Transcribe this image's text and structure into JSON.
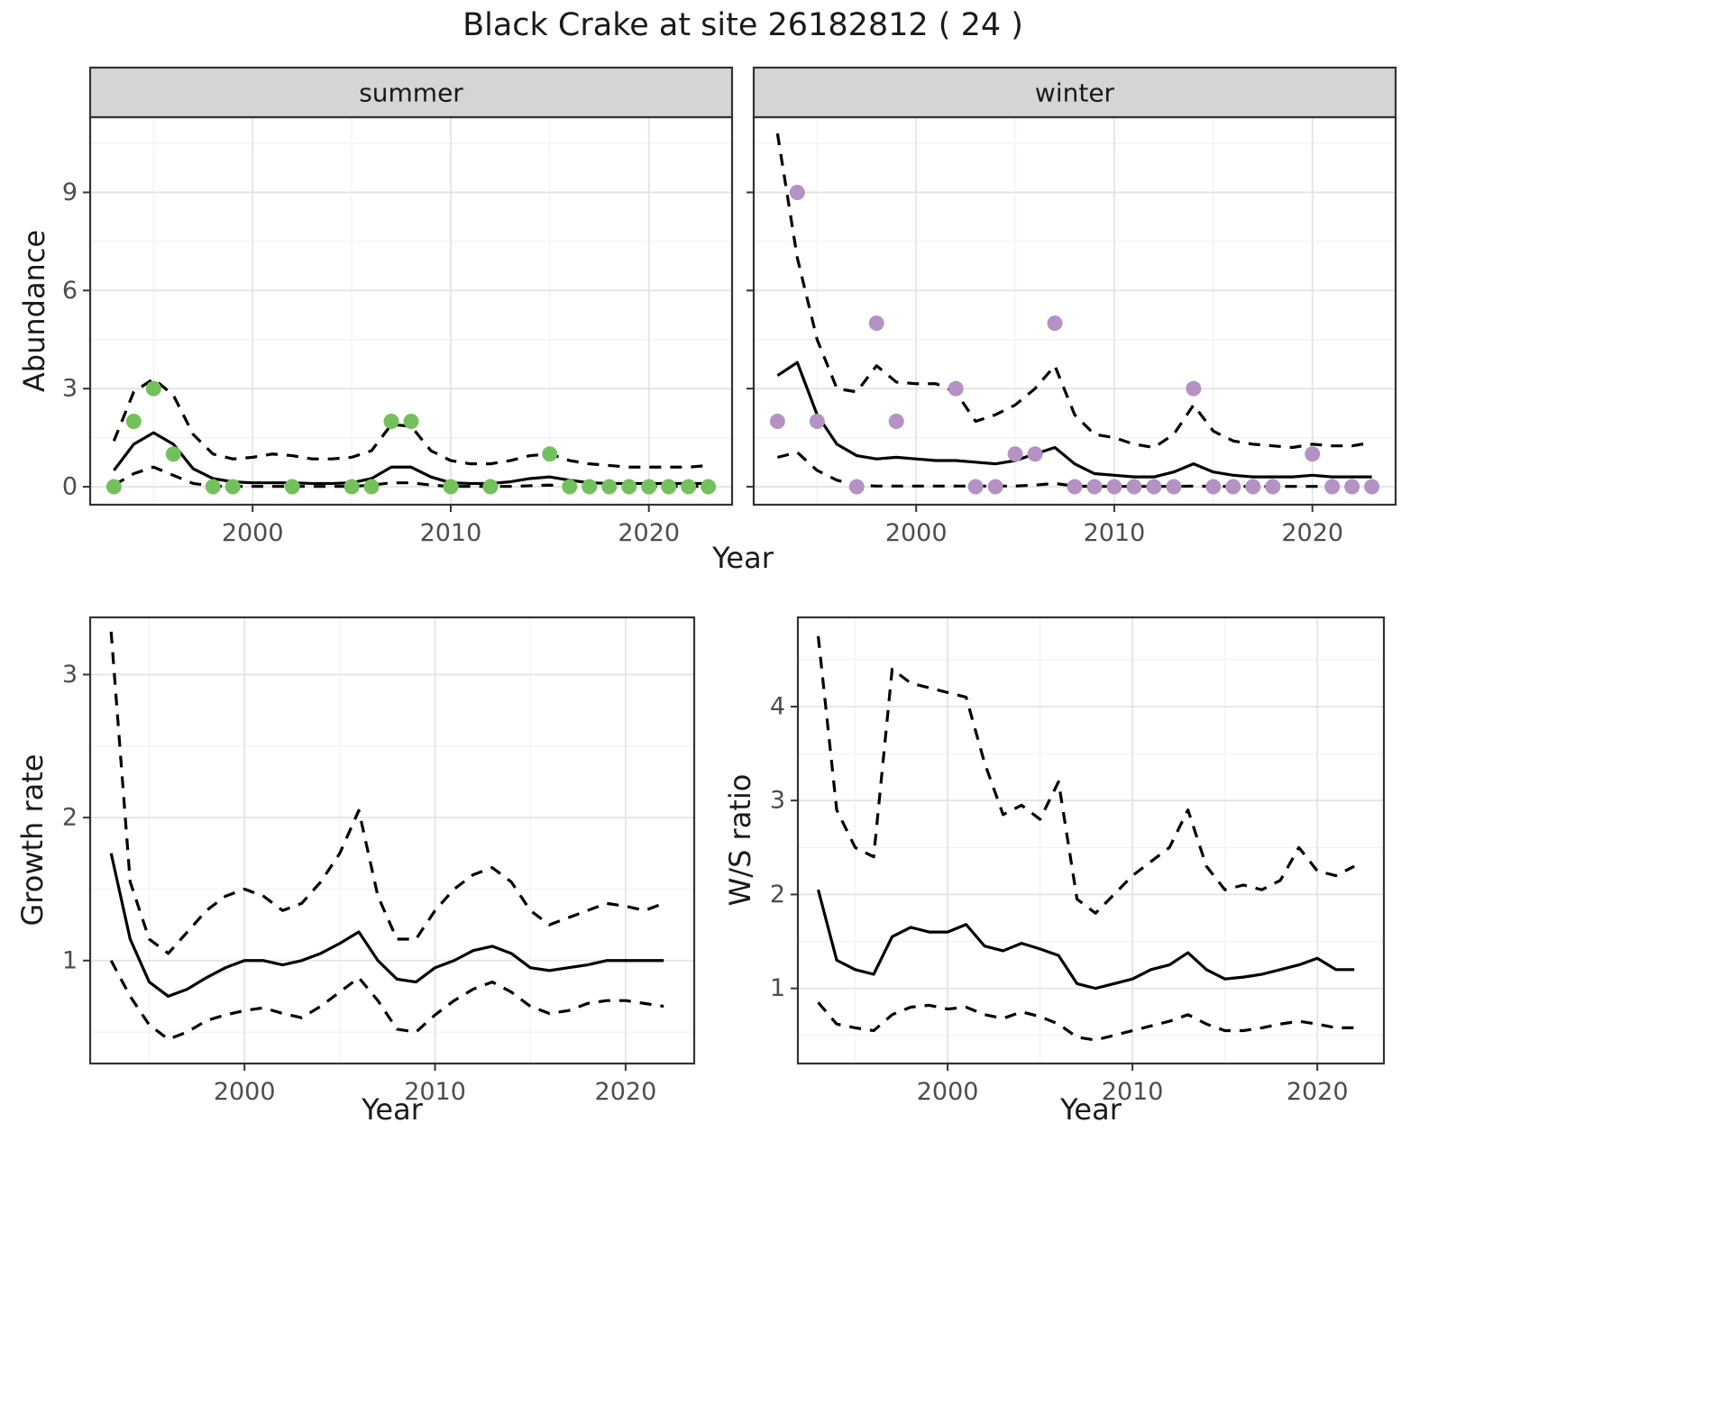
{
  "title": "Black Crake at site 26182812 ( 24 )",
  "theme": {
    "summer": "#74c05c",
    "winter": "#b492c4",
    "line": "#000000",
    "panel_bg": "#ffffff",
    "strip_bg": "#d5d5d5",
    "grid_major": "#e4e4e4",
    "grid_minor": "#f1f1f1",
    "border": "#333333",
    "tick": "#333333",
    "tick_label": "#4d4d4d",
    "text": "#1a1a1a"
  },
  "chart_data": [
    {
      "id": "abundance-summer",
      "type": "line",
      "facet_label": "summer",
      "xlabel": "Year",
      "ylabel": "Abundance",
      "xlim": [
        1991.8,
        2024.2
      ],
      "ylim": [
        -0.55,
        11.3
      ],
      "xticks": [
        2000,
        2010,
        2020
      ],
      "yticks": [
        0,
        3,
        6,
        9
      ],
      "grid": true,
      "x": [
        1993,
        1994,
        1995,
        1996,
        1997,
        1998,
        1999,
        2000,
        2001,
        2002,
        2003,
        2004,
        2005,
        2006,
        2007,
        2008,
        2009,
        2010,
        2011,
        2012,
        2013,
        2014,
        2015,
        2016,
        2017,
        2018,
        2019,
        2020,
        2021,
        2022,
        2023
      ],
      "series": [
        {
          "name": "fit",
          "style": "solid",
          "values": [
            0.5,
            1.3,
            1.65,
            1.3,
            0.55,
            0.25,
            0.15,
            0.12,
            0.12,
            0.12,
            0.1,
            0.1,
            0.12,
            0.25,
            0.6,
            0.6,
            0.3,
            0.12,
            0.1,
            0.1,
            0.15,
            0.25,
            0.3,
            0.2,
            0.12,
            0.1,
            0.1,
            0.1,
            0.1,
            0.1,
            0.1
          ]
        },
        {
          "name": "upper-ci",
          "style": "dashed",
          "values": [
            1.4,
            2.9,
            3.3,
            2.8,
            1.6,
            1.0,
            0.85,
            0.9,
            1.0,
            0.95,
            0.85,
            0.85,
            0.9,
            1.1,
            1.9,
            1.85,
            1.1,
            0.8,
            0.7,
            0.7,
            0.8,
            0.95,
            1.0,
            0.8,
            0.7,
            0.65,
            0.6,
            0.6,
            0.6,
            0.6,
            0.65
          ]
        },
        {
          "name": "lower-ci",
          "style": "dashed",
          "values": [
            0.05,
            0.4,
            0.6,
            0.35,
            0.1,
            0.02,
            0.01,
            0.01,
            0.01,
            0.01,
            0.01,
            0.01,
            0.01,
            0.05,
            0.12,
            0.12,
            0.05,
            0.01,
            0.01,
            0.01,
            0.01,
            0.03,
            0.05,
            0.02,
            0.01,
            0.01,
            0.01,
            0.01,
            0.01,
            0.01,
            0.01
          ]
        }
      ],
      "points": {
        "name": "observed-counts",
        "color_key": "summer",
        "x": [
          1993,
          1994,
          1995,
          1996,
          1998,
          1999,
          2002,
          2005,
          2006,
          2007,
          2008,
          2010,
          2012,
          2015,
          2016,
          2017,
          2018,
          2019,
          2020,
          2021,
          2022,
          2023
        ],
        "y": [
          0,
          2,
          3,
          1,
          0,
          0,
          0,
          0,
          0,
          2,
          2,
          0,
          0,
          1,
          0,
          0,
          0,
          0,
          0,
          0,
          0,
          0
        ]
      }
    },
    {
      "id": "abundance-winter",
      "type": "line",
      "facet_label": "winter",
      "xlabel": "",
      "ylabel": "",
      "xlim": [
        1991.8,
        2024.2
      ],
      "ylim": [
        -0.55,
        11.3
      ],
      "xticks": [
        2000,
        2010,
        2020
      ],
      "yticks": [
        0,
        3,
        6,
        9
      ],
      "grid": true,
      "x": [
        1993,
        1994,
        1995,
        1996,
        1997,
        1998,
        1999,
        2000,
        2001,
        2002,
        2003,
        2004,
        2005,
        2006,
        2007,
        2008,
        2009,
        2010,
        2011,
        2012,
        2013,
        2014,
        2015,
        2016,
        2017,
        2018,
        2019,
        2020,
        2021,
        2022,
        2023
      ],
      "series": [
        {
          "name": "fit",
          "style": "solid",
          "values": [
            3.4,
            3.8,
            2.2,
            1.3,
            0.95,
            0.85,
            0.9,
            0.85,
            0.8,
            0.8,
            0.75,
            0.7,
            0.8,
            1.0,
            1.2,
            0.7,
            0.4,
            0.35,
            0.3,
            0.3,
            0.45,
            0.7,
            0.45,
            0.35,
            0.3,
            0.3,
            0.3,
            0.35,
            0.3,
            0.3,
            0.3
          ]
        },
        {
          "name": "upper-ci",
          "style": "dashed",
          "values": [
            10.8,
            7.0,
            4.5,
            3.0,
            2.9,
            3.7,
            3.2,
            3.15,
            3.15,
            2.9,
            2.0,
            2.2,
            2.5,
            3.0,
            3.7,
            2.2,
            1.6,
            1.5,
            1.3,
            1.2,
            1.6,
            2.5,
            1.7,
            1.4,
            1.3,
            1.25,
            1.2,
            1.3,
            1.25,
            1.25,
            1.35
          ]
        },
        {
          "name": "lower-ci",
          "style": "dashed",
          "values": [
            0.9,
            1.05,
            0.5,
            0.2,
            0.05,
            0.02,
            0.02,
            0.02,
            0.02,
            0.02,
            0.02,
            0.02,
            0.02,
            0.05,
            0.1,
            0.02,
            0.01,
            0.01,
            0.01,
            0.01,
            0.01,
            0.02,
            0.01,
            0.01,
            0.01,
            0.01,
            0.01,
            0.01,
            0.01,
            0.01,
            0.01
          ]
        }
      ],
      "points": {
        "name": "observed-counts",
        "color_key": "winter",
        "x": [
          1993,
          1994,
          1995,
          1997,
          1998,
          1999,
          2002,
          2003,
          2004,
          2005,
          2006,
          2007,
          2008,
          2009,
          2010,
          2011,
          2012,
          2013,
          2014,
          2015,
          2016,
          2017,
          2018,
          2020,
          2021,
          2022,
          2023
        ],
        "y": [
          2,
          9,
          2,
          0,
          5,
          2,
          3,
          0,
          0,
          1,
          1,
          5,
          0,
          0,
          0,
          0,
          0,
          0,
          3,
          0,
          0,
          0,
          0,
          1,
          0,
          0,
          0
        ]
      }
    },
    {
      "id": "growth-rate",
      "type": "line",
      "facet_label": "",
      "xlabel": "Year",
      "ylabel": "Growth rate",
      "xlim": [
        1991.9,
        2023.6
      ],
      "ylim": [
        0.28,
        3.4
      ],
      "xticks": [
        2000,
        2010,
        2020
      ],
      "yticks": [
        1,
        2,
        3
      ],
      "grid": true,
      "x": [
        1993,
        1994,
        1995,
        1996,
        1997,
        1998,
        1999,
        2000,
        2001,
        2002,
        2003,
        2004,
        2005,
        2006,
        2007,
        2008,
        2009,
        2010,
        2011,
        2012,
        2013,
        2014,
        2015,
        2016,
        2017,
        2018,
        2019,
        2020,
        2021,
        2022
      ],
      "series": [
        {
          "name": "fit",
          "style": "solid",
          "values": [
            1.75,
            1.15,
            0.85,
            0.75,
            0.8,
            0.88,
            0.95,
            1.0,
            1.0,
            0.97,
            1.0,
            1.05,
            1.12,
            1.2,
            1.0,
            0.87,
            0.85,
            0.95,
            1.0,
            1.07,
            1.1,
            1.05,
            0.95,
            0.93,
            0.95,
            0.97,
            1.0,
            1.0,
            1.0,
            1.0
          ]
        },
        {
          "name": "upper-ci",
          "style": "dashed",
          "values": [
            3.3,
            1.55,
            1.15,
            1.05,
            1.2,
            1.35,
            1.45,
            1.5,
            1.45,
            1.35,
            1.4,
            1.55,
            1.75,
            2.05,
            1.45,
            1.15,
            1.15,
            1.35,
            1.5,
            1.6,
            1.65,
            1.55,
            1.35,
            1.25,
            1.3,
            1.35,
            1.4,
            1.38,
            1.35,
            1.4
          ]
        },
        {
          "name": "lower-ci",
          "style": "dashed",
          "values": [
            1.0,
            0.75,
            0.55,
            0.45,
            0.5,
            0.58,
            0.62,
            0.65,
            0.67,
            0.63,
            0.6,
            0.68,
            0.78,
            0.88,
            0.72,
            0.52,
            0.5,
            0.62,
            0.72,
            0.8,
            0.85,
            0.78,
            0.68,
            0.63,
            0.65,
            0.7,
            0.72,
            0.72,
            0.7,
            0.68
          ]
        }
      ],
      "points": null
    },
    {
      "id": "ws-ratio",
      "type": "line",
      "facet_label": "",
      "xlabel": "Year",
      "ylabel": "W/S ratio",
      "xlim": [
        1991.9,
        2023.6
      ],
      "ylim": [
        0.2,
        4.95
      ],
      "xticks": [
        2000,
        2010,
        2020
      ],
      "yticks": [
        1,
        2,
        3,
        4
      ],
      "grid": true,
      "x": [
        1993,
        1994,
        1995,
        1996,
        1997,
        1998,
        1999,
        2000,
        2001,
        2002,
        2003,
        2004,
        2005,
        2006,
        2007,
        2008,
        2009,
        2010,
        2011,
        2012,
        2013,
        2014,
        2015,
        2016,
        2017,
        2018,
        2019,
        2020,
        2021,
        2022
      ],
      "series": [
        {
          "name": "fit",
          "style": "solid",
          "values": [
            2.05,
            1.3,
            1.2,
            1.15,
            1.55,
            1.65,
            1.6,
            1.6,
            1.68,
            1.45,
            1.4,
            1.48,
            1.42,
            1.35,
            1.05,
            1.0,
            1.05,
            1.1,
            1.2,
            1.25,
            1.38,
            1.2,
            1.1,
            1.12,
            1.15,
            1.2,
            1.25,
            1.32,
            1.2,
            1.2
          ]
        },
        {
          "name": "upper-ci",
          "style": "dashed",
          "values": [
            4.75,
            2.9,
            2.5,
            2.4,
            4.4,
            4.25,
            4.2,
            4.15,
            4.1,
            3.4,
            2.85,
            2.95,
            2.8,
            3.2,
            1.95,
            1.8,
            2.0,
            2.2,
            2.35,
            2.5,
            2.9,
            2.3,
            2.05,
            2.1,
            2.05,
            2.15,
            2.5,
            2.25,
            2.2,
            2.3
          ]
        },
        {
          "name": "lower-ci",
          "style": "dashed",
          "values": [
            0.85,
            0.62,
            0.58,
            0.55,
            0.72,
            0.8,
            0.82,
            0.78,
            0.8,
            0.72,
            0.68,
            0.75,
            0.7,
            0.62,
            0.48,
            0.45,
            0.5,
            0.55,
            0.6,
            0.65,
            0.72,
            0.62,
            0.55,
            0.55,
            0.58,
            0.62,
            0.65,
            0.62,
            0.58,
            0.58
          ]
        }
      ],
      "points": null
    }
  ]
}
